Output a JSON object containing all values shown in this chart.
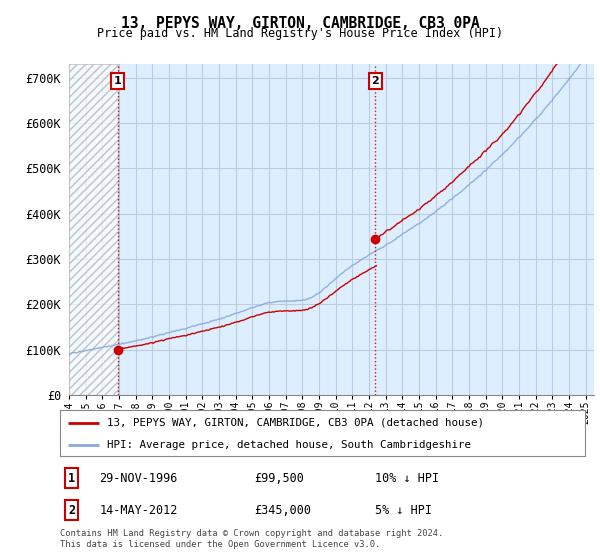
{
  "title": "13, PEPYS WAY, GIRTON, CAMBRIDGE, CB3 0PA",
  "subtitle": "Price paid vs. HM Land Registry's House Price Index (HPI)",
  "ylim": [
    0,
    730000
  ],
  "yticks": [
    0,
    100000,
    200000,
    300000,
    400000,
    500000,
    600000,
    700000
  ],
  "ytick_labels": [
    "£0",
    "£100K",
    "£200K",
    "£300K",
    "£400K",
    "£500K",
    "£600K",
    "£700K"
  ],
  "purchase1_date": "29-NOV-1996",
  "purchase1_price": 99500,
  "purchase1_pct": "10% ↓ HPI",
  "purchase2_date": "14-MAY-2012",
  "purchase2_price": 345000,
  "purchase2_pct": "5% ↓ HPI",
  "legend_line1": "13, PEPYS WAY, GIRTON, CAMBRIDGE, CB3 0PA (detached house)",
  "legend_line2": "HPI: Average price, detached house, South Cambridgeshire",
  "footer": "Contains HM Land Registry data © Crown copyright and database right 2024.\nThis data is licensed under the Open Government Licence v3.0.",
  "line_color_red": "#cc0000",
  "line_color_blue": "#88aadd",
  "background_color": "#ffffff",
  "chart_bg_color": "#ddeeff",
  "grid_color": "#bbccdd",
  "purchase1_x": 1996.92,
  "purchase2_x": 2012.37,
  "xlim_left": 1994.0,
  "xlim_right": 2025.5
}
